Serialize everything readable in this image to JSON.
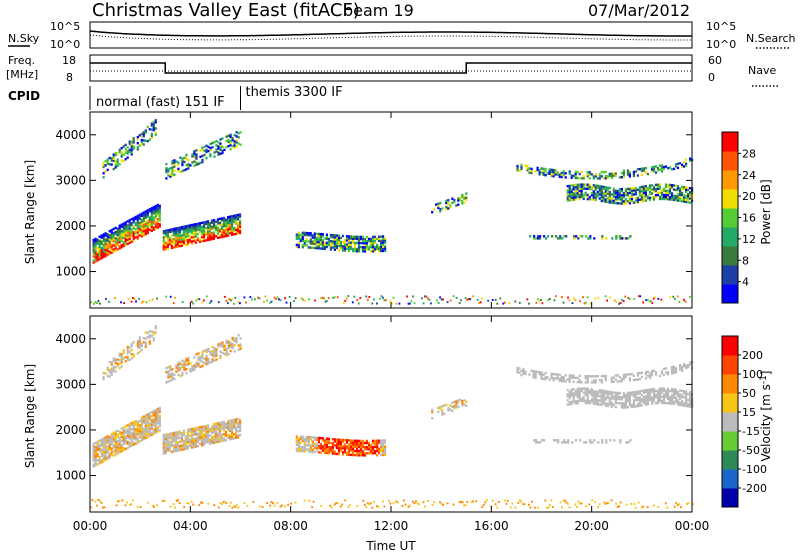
{
  "header": {
    "title": "Christmas Valley East (fitACF)",
    "beam": "beam 19",
    "date": "07/Mar/2012"
  },
  "noise_panel": {
    "left_label": "N.Sky",
    "right_label": "N.Search",
    "left_ticks": [
      "10^5",
      "10^0"
    ],
    "right_ticks": [
      "10^5",
      "10^0"
    ]
  },
  "freq_panel": {
    "left_label_1": "Freq.",
    "left_label_2": "[MHz]",
    "right_label": "Nave",
    "left_ticks": [
      "18",
      "8"
    ],
    "right_ticks": [
      "60",
      "0"
    ]
  },
  "cpid": {
    "label": "CPID",
    "modes": [
      {
        "name": "normal (fast) 151 IF",
        "start_hour": 0,
        "end_hour": 6
      },
      {
        "name": "themis 3300 IF",
        "start_hour": 6,
        "end_hour": 24
      }
    ]
  },
  "colors": {
    "power": [
      "#0000ff",
      "#1f3fa8",
      "#3a7a3a",
      "#22aa66",
      "#55cc33",
      "#f0dd00",
      "#ff9900",
      "#ff5500",
      "#ff0000"
    ],
    "velocity": [
      "#0000aa",
      "#1a66cc",
      "#2e8b57",
      "#66cc33",
      "#bbbbbb",
      "#f5c518",
      "#ff8800",
      "#ff4400",
      "#ff0000"
    ],
    "ground_scatter": "#c0c0c0"
  },
  "chart_data": [
    {
      "type": "heatmap",
      "name": "power",
      "xlabel": "",
      "ylabel": "Slant Range [km]",
      "xlim": [
        0,
        24
      ],
      "ylim": [
        200,
        4500
      ],
      "y_ticks": [
        "1000",
        "2000",
        "3000",
        "4000"
      ],
      "colorbar": {
        "label": "Power [dB]",
        "ticks": [
          "4",
          "8",
          "12",
          "16",
          "20",
          "24",
          "28"
        ],
        "range": [
          0,
          32
        ]
      }
    },
    {
      "type": "heatmap",
      "name": "velocity",
      "xlabel": "Time UT",
      "ylabel": "Slant Range [km]",
      "xlim": [
        0,
        24
      ],
      "ylim": [
        200,
        4500
      ],
      "x_ticks": [
        "00:00",
        "04:00",
        "08:00",
        "12:00",
        "16:00",
        "20:00",
        "00:00"
      ],
      "y_ticks": [
        "1000",
        "2000",
        "3000",
        "4000"
      ],
      "colorbar": {
        "label": "Velocity [m s^-1]",
        "ticks": [
          "200",
          "100",
          "50",
          "15",
          "-15",
          "-50",
          "-100",
          "-200"
        ],
        "range": [
          -250,
          250
        ]
      }
    }
  ]
}
